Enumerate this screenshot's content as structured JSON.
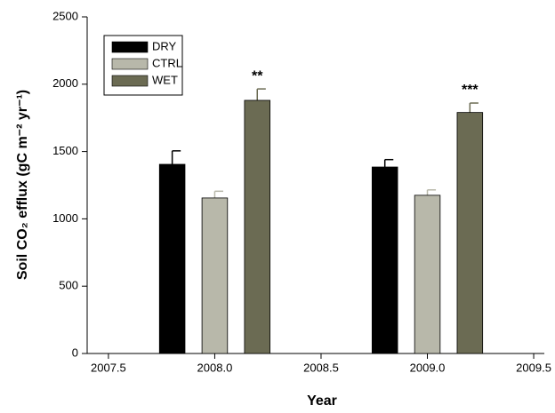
{
  "chart_data": {
    "type": "bar",
    "x_label": "Year",
    "y_label": "Soil CO₂ efflux (gC m⁻² yr⁻¹)",
    "xlim": [
      2007.4,
      2009.55
    ],
    "ylim": [
      0,
      2500
    ],
    "xticks": [
      2007.5,
      {
        "value": 2008,
        "label": "2008.0"
      },
      2008.5,
      {
        "value": 2009,
        "label": "2009.0"
      },
      2009.5
    ],
    "yticks": [
      0,
      500,
      1000,
      1500,
      2000,
      2500
    ],
    "bar_width": 0.12,
    "legend": "upper left",
    "series": [
      {
        "name": "DRY",
        "color": "#000000",
        "x": [
          2007.8,
          2008.8
        ],
        "values": [
          1405,
          1385
        ],
        "errors": [
          100,
          55
        ]
      },
      {
        "name": "CTRL",
        "color": "#b8b8aa",
        "x": [
          2008.0,
          2009.0
        ],
        "values": [
          1155,
          1175
        ],
        "errors": [
          50,
          40
        ]
      },
      {
        "name": "WET",
        "color": "#6b6b53",
        "x": [
          2008.2,
          2009.2
        ],
        "values": [
          1880,
          1790
        ],
        "errors": [
          85,
          70
        ],
        "markers": [
          "**",
          "***"
        ]
      }
    ]
  }
}
